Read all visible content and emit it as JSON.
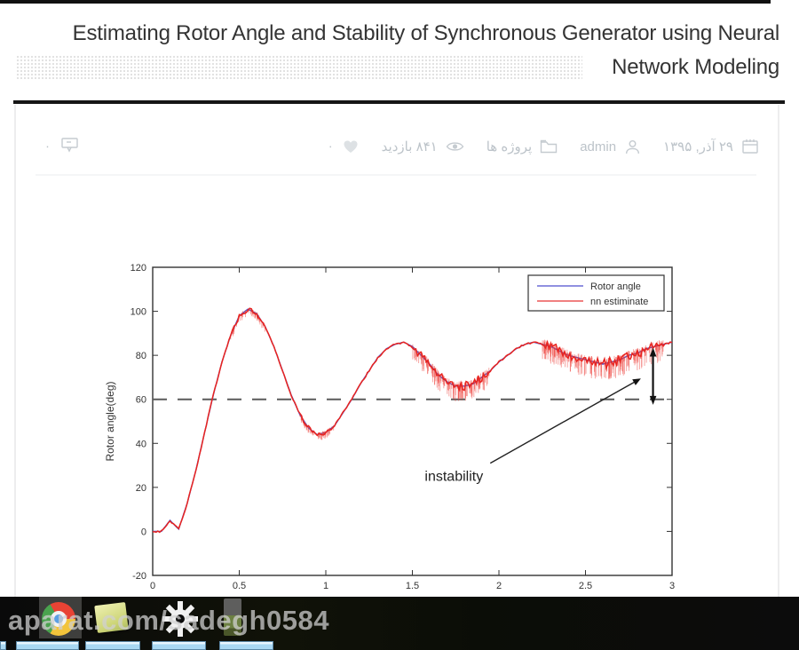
{
  "header": {
    "title": "Estimating Rotor Angle and Stability of Synchronous Generator using Neural Network Modeling"
  },
  "meta_bar": {
    "date": "۲۹ آذر, ۱۳۹۵",
    "author": "admin",
    "category": "پروژه ها",
    "views": "۸۴۱ بازدید",
    "likes_count": "۰",
    "comments_count": "۰"
  },
  "watermark": {
    "text": "aparat.com/sadegh0584"
  },
  "chart_data": {
    "type": "line",
    "title": "",
    "xlabel": "",
    "ylabel": "Rotor angle(deg)",
    "xlim": [
      0,
      3
    ],
    "ylim": [
      -20,
      120
    ],
    "xticks": [
      0,
      0.5,
      1,
      1.5,
      2,
      2.5,
      3
    ],
    "yticks": [
      -20,
      0,
      20,
      40,
      60,
      80,
      100,
      120
    ],
    "grid": false,
    "legend_position": "upper right",
    "dashed_reference_y": 60,
    "series": [
      {
        "name": "Rotor angle",
        "color": "#5050c8",
        "legend_sample_color": "#9090e0",
        "x_start": 0,
        "x_step": 0.05,
        "y": [
          0,
          0,
          5,
          1,
          13,
          28,
          45,
          62,
          77,
          89,
          98,
          101,
          99,
          93,
          84,
          73,
          62,
          53,
          47,
          44,
          45,
          48,
          54,
          60,
          67,
          73,
          79,
          83,
          85,
          86,
          84,
          80,
          76,
          71,
          68,
          66,
          66,
          67,
          70,
          73,
          77,
          80,
          83,
          85,
          86,
          85,
          84,
          82,
          80,
          79,
          78,
          77,
          76,
          77,
          78,
          80,
          81,
          83,
          84,
          85,
          86
        ]
      },
      {
        "name": "nn estiminate",
        "color": "#e8231f",
        "legend_sample_color": "#f08080",
        "x_start": 0,
        "x_step": 0.05,
        "y": [
          0,
          0,
          5,
          1,
          13,
          28,
          45,
          62,
          77,
          89,
          98,
          101,
          99,
          93,
          84,
          73,
          62,
          53,
          47,
          44,
          45,
          48,
          54,
          60,
          67,
          73,
          79,
          83,
          85,
          86,
          84,
          80,
          76,
          71,
          68,
          66,
          66,
          67,
          70,
          73,
          77,
          80,
          83,
          85,
          86,
          85,
          84,
          82,
          80,
          79,
          78,
          77,
          76,
          77,
          78,
          80,
          81,
          83,
          84,
          85,
          86
        ],
        "noise_regions": [
          {
            "x0": 0.45,
            "x1": 0.65,
            "amp": 3
          },
          {
            "x0": 0.85,
            "x1": 1.05,
            "amp": 3
          },
          {
            "x0": 1.5,
            "x1": 1.95,
            "amp": 7
          },
          {
            "x0": 2.25,
            "x1": 2.95,
            "amp": 8
          }
        ]
      }
    ],
    "annotations": [
      {
        "type": "text",
        "label": "instability",
        "x": 1.74,
        "y": 23
      },
      {
        "type": "arrow",
        "from": [
          1.95,
          31
        ],
        "to": [
          2.82,
          69.5
        ]
      },
      {
        "type": "double_arrow",
        "x": 2.89,
        "y1": 57.5,
        "y2": 83.5
      }
    ]
  },
  "taskbar": {
    "window_stubs": 5
  }
}
